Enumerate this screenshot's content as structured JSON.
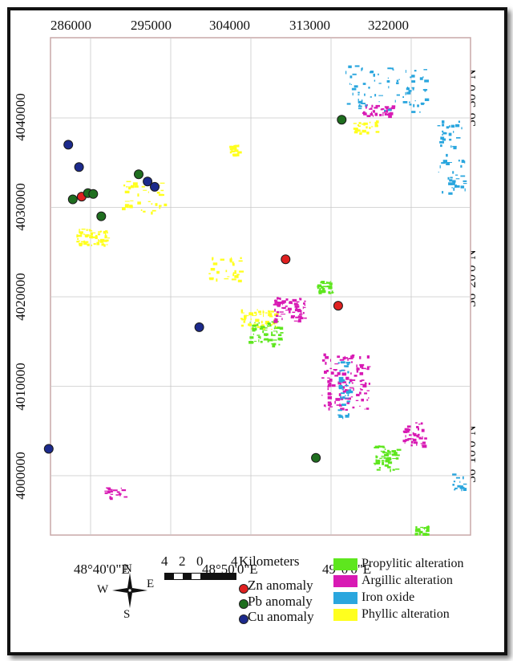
{
  "map": {
    "x_axis_top": [
      "286000",
      "295000",
      "304000",
      "313000",
      "322000"
    ],
    "y_axis_left": [
      "4040000",
      "4030000",
      "4020000",
      "4010000",
      "4000000"
    ],
    "longitude_bottom": [
      "48°40'0\"E",
      "48°50'0\"E",
      "49°0'0\"E"
    ],
    "latitude_right": [
      "36°30'0\"N",
      "36°20'0\"N",
      "36°10'0\"N"
    ],
    "points": [
      {
        "type": "cu",
        "x": 283500,
        "y": 4037000
      },
      {
        "type": "cu",
        "x": 284700,
        "y": 4034500
      },
      {
        "type": "zn",
        "x": 285000,
        "y": 4031200
      },
      {
        "type": "pb",
        "x": 284000,
        "y": 4030900
      },
      {
        "type": "pb",
        "x": 285700,
        "y": 4031600
      },
      {
        "type": "pb",
        "x": 286300,
        "y": 4031500
      },
      {
        "type": "pb",
        "x": 287200,
        "y": 4029000
      },
      {
        "type": "pb",
        "x": 291400,
        "y": 4033700
      },
      {
        "type": "cu",
        "x": 292400,
        "y": 4032900
      },
      {
        "type": "cu",
        "x": 293200,
        "y": 4032300
      },
      {
        "type": "cu",
        "x": 298200,
        "y": 4016600
      },
      {
        "type": "zn",
        "x": 307900,
        "y": 4024200
      },
      {
        "type": "zn",
        "x": 313800,
        "y": 4019000
      },
      {
        "type": "pb",
        "x": 314200,
        "y": 4039800
      },
      {
        "type": "pb",
        "x": 311300,
        "y": 4002000
      },
      {
        "type": "cu",
        "x": 281300,
        "y": 4003000
      }
    ]
  },
  "colors": {
    "zn": "#e02020",
    "pb": "#1f6e1f",
    "cu": "#1c2a8c",
    "propylitic": "#5ee61e",
    "argillic": "#d81ab4",
    "iron": "#2aa6de",
    "phyllic": "#ffff1e",
    "grid": "#c9c9c9",
    "border": "#c8a8a8"
  },
  "scale_bar": {
    "ticks": [
      "4",
      "2",
      "0",
      "4"
    ],
    "unit": "Kilometers"
  },
  "compass": {
    "n": "N",
    "s": "S",
    "e": "E",
    "w": "W",
    "icon": "compass-rose-icon"
  },
  "legend": {
    "zn": "Zn anomaly",
    "pb": "Pb anomaly",
    "cu": "Cu anomaly",
    "propylitic": "Propylitic alteration",
    "argillic": "Argillic alteration",
    "iron": "Iron oxide",
    "phyllic": "Phyllic alteration"
  }
}
